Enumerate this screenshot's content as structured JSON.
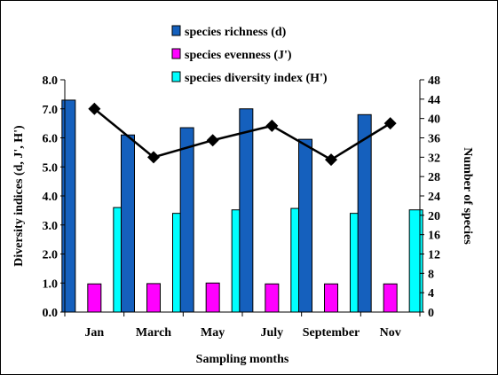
{
  "chart_data": {
    "type": "bar",
    "xlabel": "Sampling months",
    "ylabel": "Diversity indices (d, J', H')",
    "y2label": "Number of species",
    "categories": [
      "Jan",
      "March",
      "May",
      "July",
      "September",
      "Nov"
    ],
    "ylim": [
      0,
      8
    ],
    "yticks": [
      "0.0",
      "1.0",
      "2.0",
      "3.0",
      "4.0",
      "5.0",
      "6.0",
      "7.0",
      "8.0"
    ],
    "y2lim": [
      0,
      48
    ],
    "y2ticks": [
      "0",
      "4",
      "8",
      "12",
      "16",
      "20",
      "24",
      "28",
      "32",
      "36",
      "40",
      "44",
      "48"
    ],
    "legend_position": "top",
    "grid": false,
    "series": [
      {
        "name": "species richness (d)",
        "kind": "bar",
        "axis": "left",
        "color": "#1560BD",
        "values": [
          7.3,
          6.1,
          6.35,
          7.0,
          5.95,
          6.8
        ]
      },
      {
        "name": "species evenness (J')",
        "kind": "bar",
        "axis": "left",
        "color": "#FF00FF",
        "values": [
          0.97,
          0.98,
          1.0,
          0.97,
          0.97,
          0.97
        ]
      },
      {
        "name": "species diversity index (H')",
        "kind": "bar",
        "axis": "left",
        "color": "#00FFFF",
        "values": [
          3.6,
          3.4,
          3.52,
          3.57,
          3.4,
          3.52
        ]
      },
      {
        "name": "",
        "kind": "line",
        "axis": "right",
        "color": "#000000",
        "values": [
          42,
          32,
          35.5,
          38.5,
          31.5,
          39
        ]
      }
    ]
  }
}
